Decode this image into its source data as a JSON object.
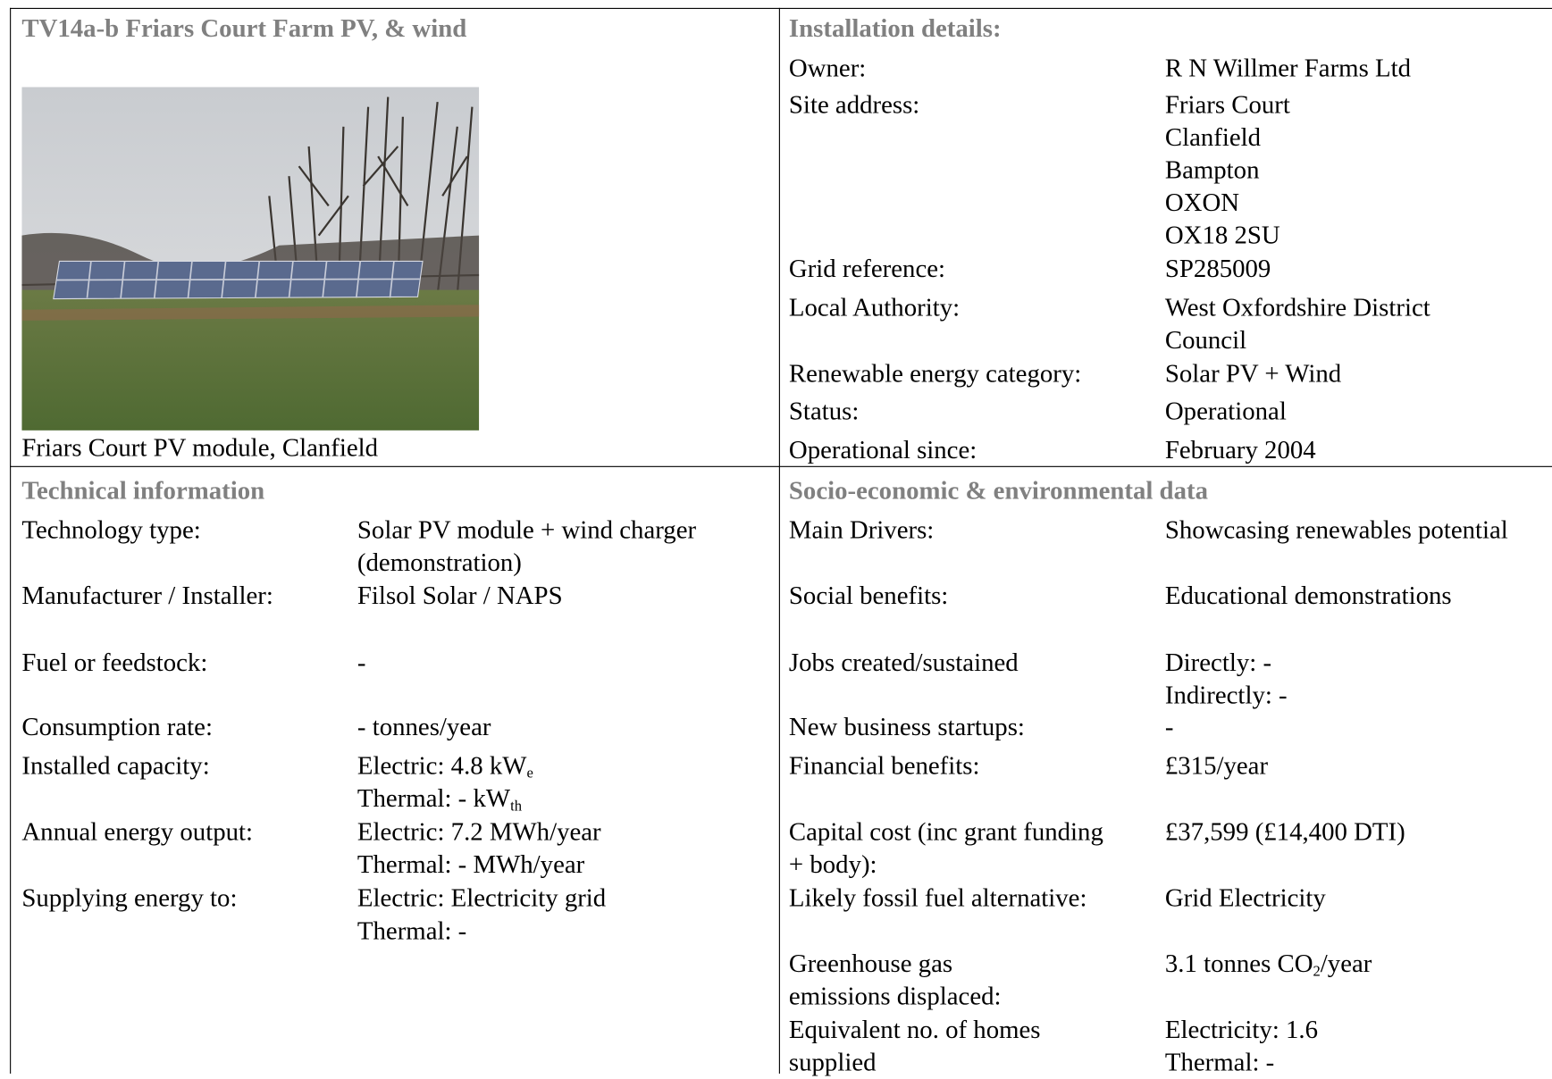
{
  "header": {
    "title": "TV14a-b Friars Court Farm PV, & wind",
    "caption": "Friars Court PV module, Clanfield"
  },
  "installation": {
    "heading": "Installation details:",
    "rows": [
      {
        "label": [
          "Owner:"
        ],
        "value": [
          "R N Willmer Farms Ltd"
        ]
      },
      {
        "label": [
          "Site address:"
        ],
        "value": [
          "Friars Court",
          "Clanfield",
          "Bampton",
          "OXON",
          "OX18 2SU"
        ]
      },
      {
        "label": [
          "Grid reference:"
        ],
        "value": [
          "SP285009"
        ]
      },
      {
        "label": [
          "Local Authority:"
        ],
        "value": [
          "West Oxfordshire District",
          "Council"
        ]
      },
      {
        "label": [
          "Renewable energy category:"
        ],
        "value": [
          "Solar PV + Wind"
        ]
      },
      {
        "label": [
          "Status:"
        ],
        "value": [
          "Operational"
        ]
      },
      {
        "label": [
          "Operational since:"
        ],
        "value": [
          "February 2004"
        ]
      }
    ]
  },
  "technical": {
    "heading": "Technical information",
    "rows": [
      {
        "label": [
          "Technology type:"
        ],
        "value": [
          "Solar PV module + wind charger",
          "(demonstration)"
        ]
      },
      {
        "label": [
          "Manufacturer / Installer:"
        ],
        "value": [
          "Filsol Solar / NAPS"
        ]
      },
      {
        "label": [
          "Fuel or feedstock:"
        ],
        "value": [
          "-"
        ]
      },
      {
        "label": [
          "Consumption rate:"
        ],
        "value": [
          "- tonnes/year"
        ]
      },
      {
        "label": [
          "Installed capacity:"
        ],
        "value": [
          {
            "text": "Electric: 4.8 kW",
            "sub": "e"
          },
          {
            "text": "Thermal: - kW",
            "sub": "th"
          }
        ]
      },
      {
        "label": [
          "Annual energy output:"
        ],
        "value": [
          "Electric: 7.2 MWh/year",
          "Thermal: - MWh/year"
        ]
      },
      {
        "label": [
          "Supplying energy to:"
        ],
        "value": [
          "Electric: Electricity grid",
          "Thermal: -"
        ]
      }
    ]
  },
  "socio": {
    "heading": "Socio-economic & environmental data",
    "rows": [
      {
        "label": [
          "Main Drivers:"
        ],
        "value": [
          "Showcasing renewables potential"
        ]
      },
      {
        "label": [
          "Social benefits:"
        ],
        "value": [
          "Educational demonstrations"
        ]
      },
      {
        "label": [
          "Jobs created/sustained"
        ],
        "value": [
          "Directly: -",
          "Indirectly: -"
        ]
      },
      {
        "label": [
          "New business startups:"
        ],
        "value": [
          "-"
        ]
      },
      {
        "label": [
          "Financial benefits:"
        ],
        "value": [
          "£315/year"
        ]
      },
      {
        "label": [
          "Capital cost (inc grant funding",
          "+ body):"
        ],
        "value": [
          "£37,599 (£14,400 DTI)"
        ]
      },
      {
        "label": [
          "Likely fossil fuel alternative:"
        ],
        "value": [
          "Grid Electricity"
        ]
      },
      {
        "label": [
          "Greenhouse gas",
          "emissions displaced:"
        ],
        "value": [
          {
            "text": "3.1 tonnes CO",
            "sub": "2",
            "after": "/year"
          }
        ]
      },
      {
        "label": [
          "Equivalent no. of homes",
          "supplied"
        ],
        "value": [
          "Electricity: 1.6",
          "Thermal: -"
        ]
      }
    ]
  }
}
